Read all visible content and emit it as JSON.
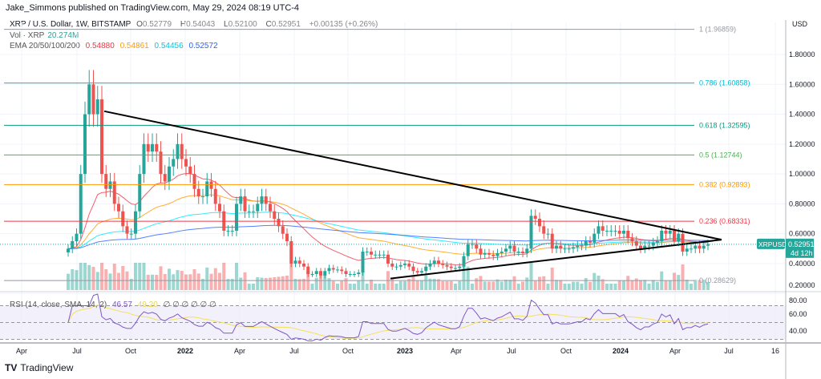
{
  "header": {
    "published": "Jake_Simmons published on TradingView.com, May 29, 2024 08:19 UTC-4"
  },
  "legend": {
    "symbol": "XRP / U.S. Dollar, 1W, BITSTAMP",
    "o_label": "O",
    "o": "0.52779",
    "h_label": "H",
    "h": "0.54043",
    "l_label": "L",
    "l": "0.52100",
    "c_label": "C",
    "c": "0.52951",
    "change": "+0.00135 (+0.26%)",
    "vol_label": "Vol · XRP",
    "vol": "20.274M",
    "ema_label": "EMA 20/50/100/200",
    "ema": [
      "0.54880",
      "0.54861",
      "0.54456",
      "0.52572"
    ],
    "ema_colors": [
      "#f23645",
      "#ff9800",
      "#00e5ff",
      "#2962ff"
    ],
    "rsi_label": "RSI (14, close, SMA, 14, 2)",
    "rsi": "46.57",
    "rsi_sma": "49.20",
    "rsi_extra": "∅ ∅ ∅ ∅ ∅ ∅"
  },
  "footer": {
    "logo": "TV",
    "brand": "TradingView"
  },
  "chart_data": {
    "type": "candlestick",
    "interval": "1W",
    "currency": "USD",
    "ylim": [
      0.2,
      1.99
    ],
    "price_ticks": [
      "1.80000",
      "1.60000",
      "1.40000",
      "1.20000",
      "1.00000",
      "0.80000",
      "0.60000",
      "0.40000",
      "0.20000"
    ],
    "price_tick_values": [
      1.8,
      1.6,
      1.4,
      1.2,
      1.0,
      0.8,
      0.6,
      0.4,
      0.2
    ],
    "time_ticks": [
      "Apr",
      "Jul",
      "Oct",
      "2022",
      "Apr",
      "Jul",
      "Oct",
      "2023",
      "Apr",
      "Jul",
      "Oct",
      "2024",
      "Apr",
      "Jul",
      "16"
    ],
    "rsi_ticks": [
      "80.00",
      "60.00",
      "40.00"
    ],
    "rsi_tick_values": [
      80,
      60,
      40
    ],
    "last_price": {
      "symbol": "XRPUSD",
      "price": "0.52951",
      "countdown": "4d 12h",
      "value": 0.52951
    },
    "up_color": "#26a69a",
    "down_color": "#ef5350",
    "closes": [
      0.5,
      0.55,
      0.6,
      1.0,
      1.4,
      1.6,
      1.4,
      1.5,
      1.0,
      0.9,
      0.95,
      0.8,
      0.75,
      0.65,
      0.6,
      0.6,
      0.75,
      1.0,
      1.2,
      1.15,
      1.2,
      1.15,
      1.0,
      0.95,
      1.05,
      1.1,
      1.2,
      1.1,
      1.05,
      1.0,
      0.9,
      0.85,
      0.85,
      0.95,
      0.9,
      0.8,
      0.75,
      0.62,
      0.62,
      0.62,
      0.8,
      0.85,
      0.75,
      0.75,
      0.75,
      0.8,
      0.85,
      0.8,
      0.75,
      0.7,
      0.65,
      0.6,
      0.55,
      0.4,
      0.42,
      0.4,
      0.38,
      0.33,
      0.33,
      0.35,
      0.32,
      0.35,
      0.37,
      0.36,
      0.36,
      0.35,
      0.33,
      0.33,
      0.33,
      0.34,
      0.48,
      0.48,
      0.46,
      0.46,
      0.46,
      0.46,
      0.4,
      0.38,
      0.38,
      0.39,
      0.4,
      0.38,
      0.35,
      0.34,
      0.35,
      0.38,
      0.4,
      0.42,
      0.4,
      0.39,
      0.38,
      0.37,
      0.37,
      0.38,
      0.45,
      0.53,
      0.53,
      0.5,
      0.46,
      0.47,
      0.46,
      0.45,
      0.47,
      0.48,
      0.5,
      0.52,
      0.48,
      0.48,
      0.47,
      0.5,
      0.72,
      0.7,
      0.65,
      0.6,
      0.6,
      0.5,
      0.52,
      0.5,
      0.5,
      0.5,
      0.51,
      0.52,
      0.52,
      0.55,
      0.54,
      0.6,
      0.65,
      0.62,
      0.62,
      0.62,
      0.62,
      0.6,
      0.62,
      0.57,
      0.55,
      0.52,
      0.5,
      0.52,
      0.52,
      0.54,
      0.55,
      0.62,
      0.6,
      0.62,
      0.55,
      0.6,
      0.48,
      0.5,
      0.5,
      0.52,
      0.5,
      0.52,
      0.52951
    ],
    "fib_levels": [
      {
        "label": "1 (1.96859)",
        "value": 1.96859,
        "color": "#9598a1"
      },
      {
        "label": "0.786 (1.60858)",
        "value": 1.60858,
        "color": "#00bcd4"
      },
      {
        "label": "0.618 (1.32595)",
        "value": 1.32595,
        "color": "#089981"
      },
      {
        "label": "0.5 (1.12744)",
        "value": 1.12744,
        "color": "#4caf50"
      },
      {
        "label": "0.382 (0.92893)",
        "value": 0.92893,
        "color": "#ff9800"
      },
      {
        "label": "0.236 (0.68331)",
        "value": 0.68331,
        "color": "#f23645"
      },
      {
        "label": "0 (0.28629)",
        "value": 0.28629,
        "color": "#9598a1"
      }
    ],
    "trendlines": [
      {
        "from": 1.42,
        "to": 0.56
      },
      {
        "from": 0.3,
        "to": 0.56
      }
    ]
  }
}
